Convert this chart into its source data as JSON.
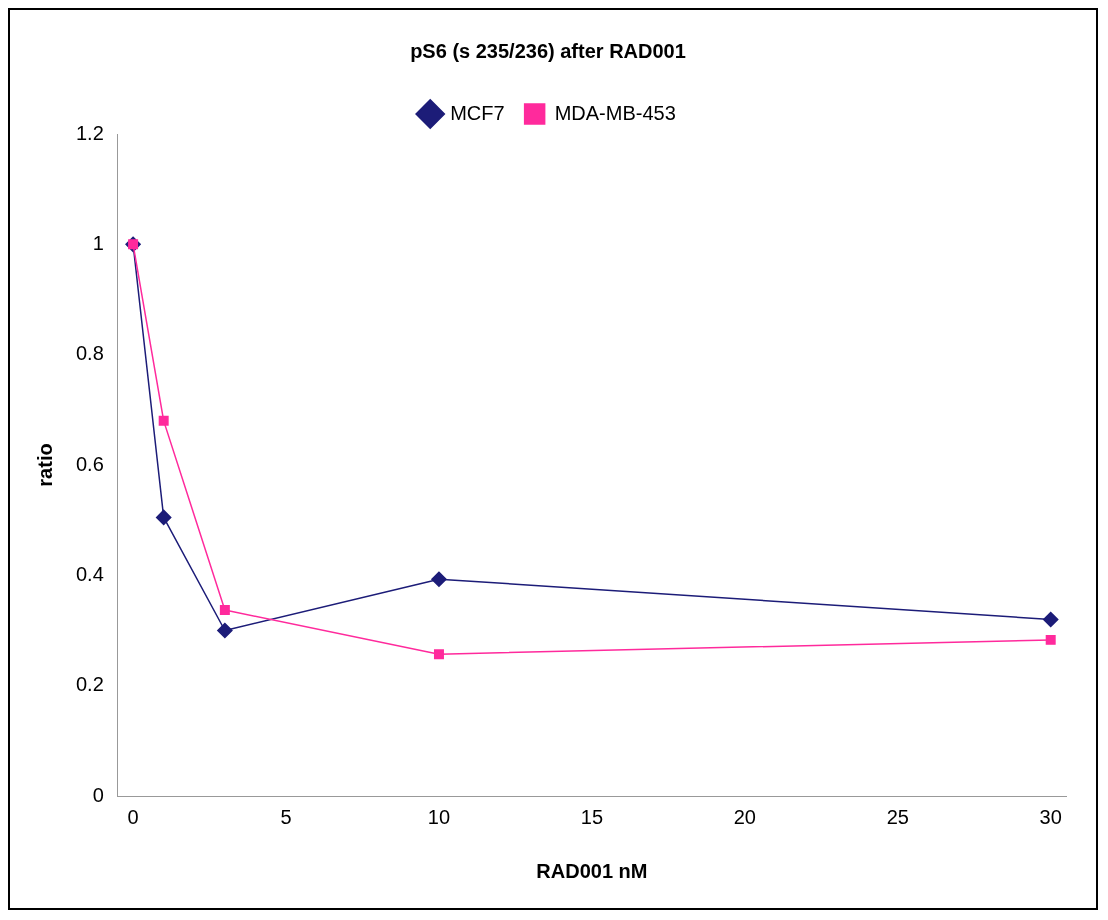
{
  "chart_data": {
    "type": "line",
    "title": "pS6 (s 235/236) after RAD001",
    "xlabel": "RAD001 nM",
    "ylabel": "ratio",
    "x": [
      0,
      1,
      3,
      10,
      30
    ],
    "series": [
      {
        "name": "MCF7",
        "color": "#1c1c78",
        "values": [
          1.0,
          0.505,
          0.3,
          0.393,
          0.32
        ],
        "marker": "diamond"
      },
      {
        "name": "MDA-MB-453",
        "color": "#ff2a9c",
        "values": [
          1.0,
          0.68,
          0.337,
          0.257,
          0.283
        ],
        "marker": "square"
      }
    ],
    "xlim": [
      -0.5,
      30.5
    ],
    "xticks": [
      0,
      5,
      10,
      15,
      20,
      25,
      30
    ],
    "ylim": [
      0,
      1.2
    ],
    "yticks": [
      0,
      0.2,
      0.4,
      0.6,
      0.8,
      1,
      1.2
    ],
    "grid": false,
    "legend": "top",
    "line_style": "solid"
  }
}
